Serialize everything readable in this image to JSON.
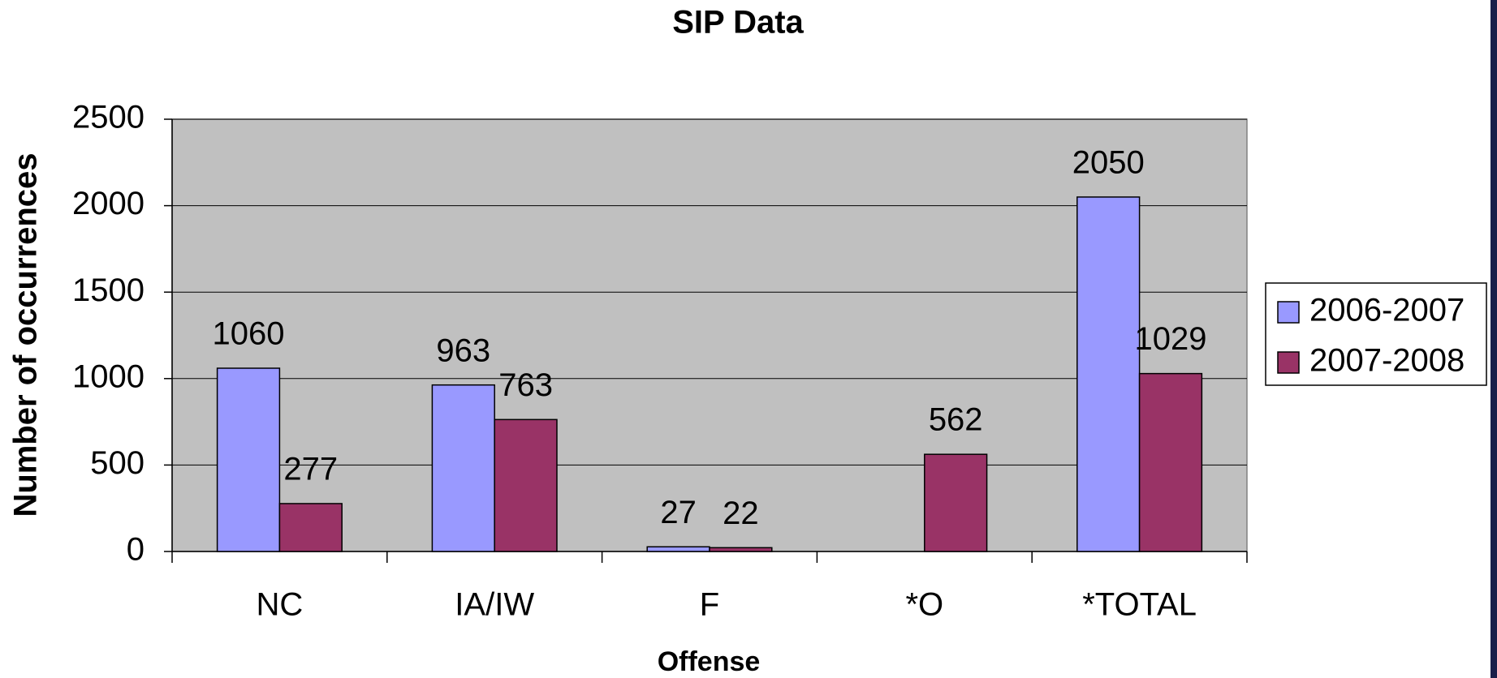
{
  "chart_data": {
    "type": "bar",
    "title": "SIP Data",
    "x_label": "Offense",
    "y_label": "Number of occurrences",
    "categories": [
      "NC",
      "IA/IW",
      "F",
      "*O",
      "*TOTAL"
    ],
    "series": [
      {
        "name": "2006-2007",
        "color": "#9999ff",
        "values": [
          1060,
          963,
          27,
          null,
          2050
        ]
      },
      {
        "name": "2007-2008",
        "color": "#993366",
        "values": [
          277,
          763,
          22,
          562,
          1029
        ]
      }
    ],
    "ylim": [
      0,
      2500
    ],
    "yticks": [
      0,
      500,
      1000,
      1500,
      2000,
      2500
    ],
    "grid": true,
    "plot_background": "#c0c0c0",
    "legend": "right"
  }
}
